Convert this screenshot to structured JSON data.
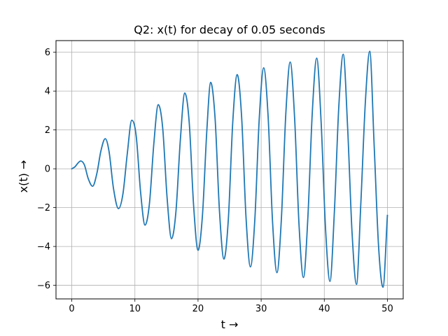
{
  "chart_data": {
    "type": "line",
    "title": "Q2: x(t) for decay of 0.05 seconds",
    "xlabel": "t →",
    "ylabel": "x(t) →",
    "xlim": [
      -2.5,
      52.5
    ],
    "ylim": [
      -6.7,
      6.6
    ],
    "xticks": [
      0,
      10,
      20,
      30,
      40,
      50
    ],
    "yticks": [
      -6,
      -4,
      -2,
      0,
      2,
      4,
      6
    ],
    "xtick_labels": [
      "0",
      "10",
      "20",
      "30",
      "40",
      "50"
    ],
    "ytick_labels": [
      "−6",
      "−4",
      "−2",
      "0",
      "2",
      "4",
      "6"
    ],
    "grid": true,
    "color": "#1f77b4",
    "series": [
      {
        "name": "",
        "x": [
          0.0,
          0.5,
          1.0,
          1.4,
          2.0,
          2.6,
          3.3,
          4.0,
          4.6,
          5.3,
          5.9,
          6.6,
          7.4,
          8.1,
          8.8,
          9.5,
          10.2,
          10.9,
          11.6,
          12.3,
          13.0,
          13.7,
          14.4,
          15.1,
          15.8,
          16.5,
          17.2,
          17.9,
          18.6,
          19.3,
          20.0,
          20.7,
          21.4,
          22.0,
          22.7,
          23.4,
          24.1,
          24.8,
          25.5,
          26.2,
          26.9,
          27.6,
          28.3,
          29.0,
          29.7,
          30.4,
          31.1,
          31.8,
          32.5,
          33.2,
          33.9,
          34.6,
          35.3,
          36.0,
          36.7,
          37.4,
          38.1,
          38.8,
          39.5,
          40.2,
          40.9,
          41.6,
          42.3,
          43.0,
          43.7,
          44.4,
          45.1,
          45.8,
          46.5,
          47.2,
          47.9,
          48.6,
          49.3,
          50.0
        ],
        "y": [
          0.0,
          0.1,
          0.3,
          0.4,
          0.2,
          -0.5,
          -0.9,
          -0.2,
          0.9,
          1.55,
          0.9,
          -1.0,
          -2.05,
          -1.3,
          0.8,
          2.5,
          1.7,
          -1.2,
          -2.9,
          -1.8,
          1.3,
          3.3,
          2.1,
          -1.5,
          -3.6,
          -2.2,
          1.5,
          3.9,
          2.4,
          -1.9,
          -4.2,
          -2.4,
          2.0,
          4.45,
          2.6,
          -2.2,
          -4.65,
          -2.6,
          2.4,
          4.85,
          2.7,
          -2.5,
          -5.05,
          -2.6,
          2.6,
          5.2,
          2.7,
          -2.7,
          -5.35,
          -2.6,
          2.8,
          5.5,
          2.6,
          -2.9,
          -5.6,
          -2.5,
          2.9,
          5.7,
          2.4,
          -3.1,
          -5.8,
          -2.2,
          3.2,
          5.9,
          2.1,
          -3.3,
          -5.95,
          -1.7,
          3.4,
          6.05,
          1.2,
          -4.0,
          -6.1,
          -2.4
        ]
      }
    ]
  }
}
